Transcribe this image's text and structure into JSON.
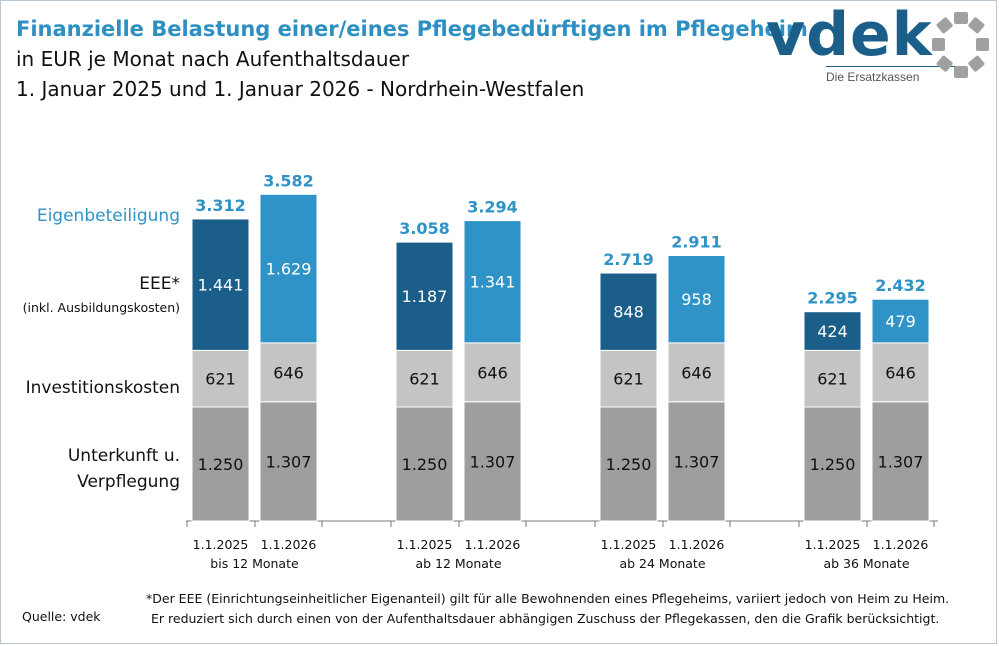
{
  "header": {
    "title": "Finanzielle Belastung einer/eines Pflegebedürftigen im Pflegeheim",
    "subtitle": "in EUR je Monat nach Aufenthaltsdauer",
    "subtitle2": "1. Januar 2025 und 1. Januar 2026 - Nordrhein-Westfalen"
  },
  "logo": {
    "word": "vdek",
    "tagline": "Die Ersatzkassen",
    "color": "#1a5e89",
    "ring_color": "#a0a0a0"
  },
  "chart_data": {
    "type": "bar",
    "stacked": true,
    "groups": [
      {
        "label": "bis 12 Monate",
        "dates": [
          "1.1.2025",
          "1.1.2026"
        ]
      },
      {
        "label": "ab 12 Monate",
        "dates": [
          "1.1.2025",
          "1.1.2026"
        ]
      },
      {
        "label": "ab 24 Monate",
        "dates": [
          "1.1.2025",
          "1.1.2026"
        ]
      },
      {
        "label": "ab 36 Monate",
        "dates": [
          "1.1.2025",
          "1.1.2026"
        ]
      }
    ],
    "series": [
      {
        "name": "Unterkunft u. Verpflegung",
        "values": [
          1250,
          1307,
          1250,
          1307,
          1250,
          1307,
          1250,
          1307
        ],
        "labels": [
          "1.250",
          "1.307",
          "1.250",
          "1.307",
          "1.250",
          "1.307",
          "1.250",
          "1.307"
        ],
        "colors": [
          "#9e9e9e",
          "#9e9e9e"
        ]
      },
      {
        "name": "Investitionskosten",
        "values": [
          621,
          646,
          621,
          646,
          621,
          646,
          621,
          646
        ],
        "labels": [
          "621",
          "646",
          "621",
          "646",
          "621",
          "646",
          "621",
          "646"
        ],
        "colors": [
          "#c4c4c4",
          "#c4c4c4"
        ]
      },
      {
        "name": "EEE* (inkl. Ausbildungskosten)",
        "values": [
          1441,
          1629,
          1187,
          1341,
          848,
          958,
          424,
          479
        ],
        "labels": [
          "1.441",
          "1.629",
          "1.187",
          "1.341",
          "848",
          "958",
          "424",
          "479"
        ],
        "colors": [
          "#1a5e89",
          "#2f93c7"
        ]
      }
    ],
    "totals": {
      "name": "Eigenbeteiligung",
      "values": [
        3312,
        3582,
        3058,
        3294,
        2719,
        2911,
        2295,
        2432
      ],
      "labels": [
        "3.312",
        "3.582",
        "3.058",
        "3.294",
        "2.719",
        "2.911",
        "2.295",
        "2.432"
      ],
      "color": "#2f93c7"
    },
    "row_labels": {
      "eigen": "Eigenbeteiligung",
      "eee": "EEE*",
      "eee_sub": "(inkl. Ausbildungskosten)",
      "invest": "Investitionskosten",
      "unterkunft_1": "Unterkunft u.",
      "unterkunft_2": "Verpflegung"
    },
    "ylim": [
      0,
      3700
    ],
    "grid": false,
    "legend": "left"
  },
  "footnote": {
    "line1": "*Der EEE (Einrichtungseinheitlicher Eigenanteil) gilt für alle Bewohnenden eines Pflegeheims, variiert jedoch von Heim zu Heim.",
    "line2": "Er reduziert sich durch einen von der Aufenthaltsdauer abhängigen Zuschuss der Pflegekassen, den die Grafik berücksichtigt."
  },
  "source": "Quelle: vdek"
}
